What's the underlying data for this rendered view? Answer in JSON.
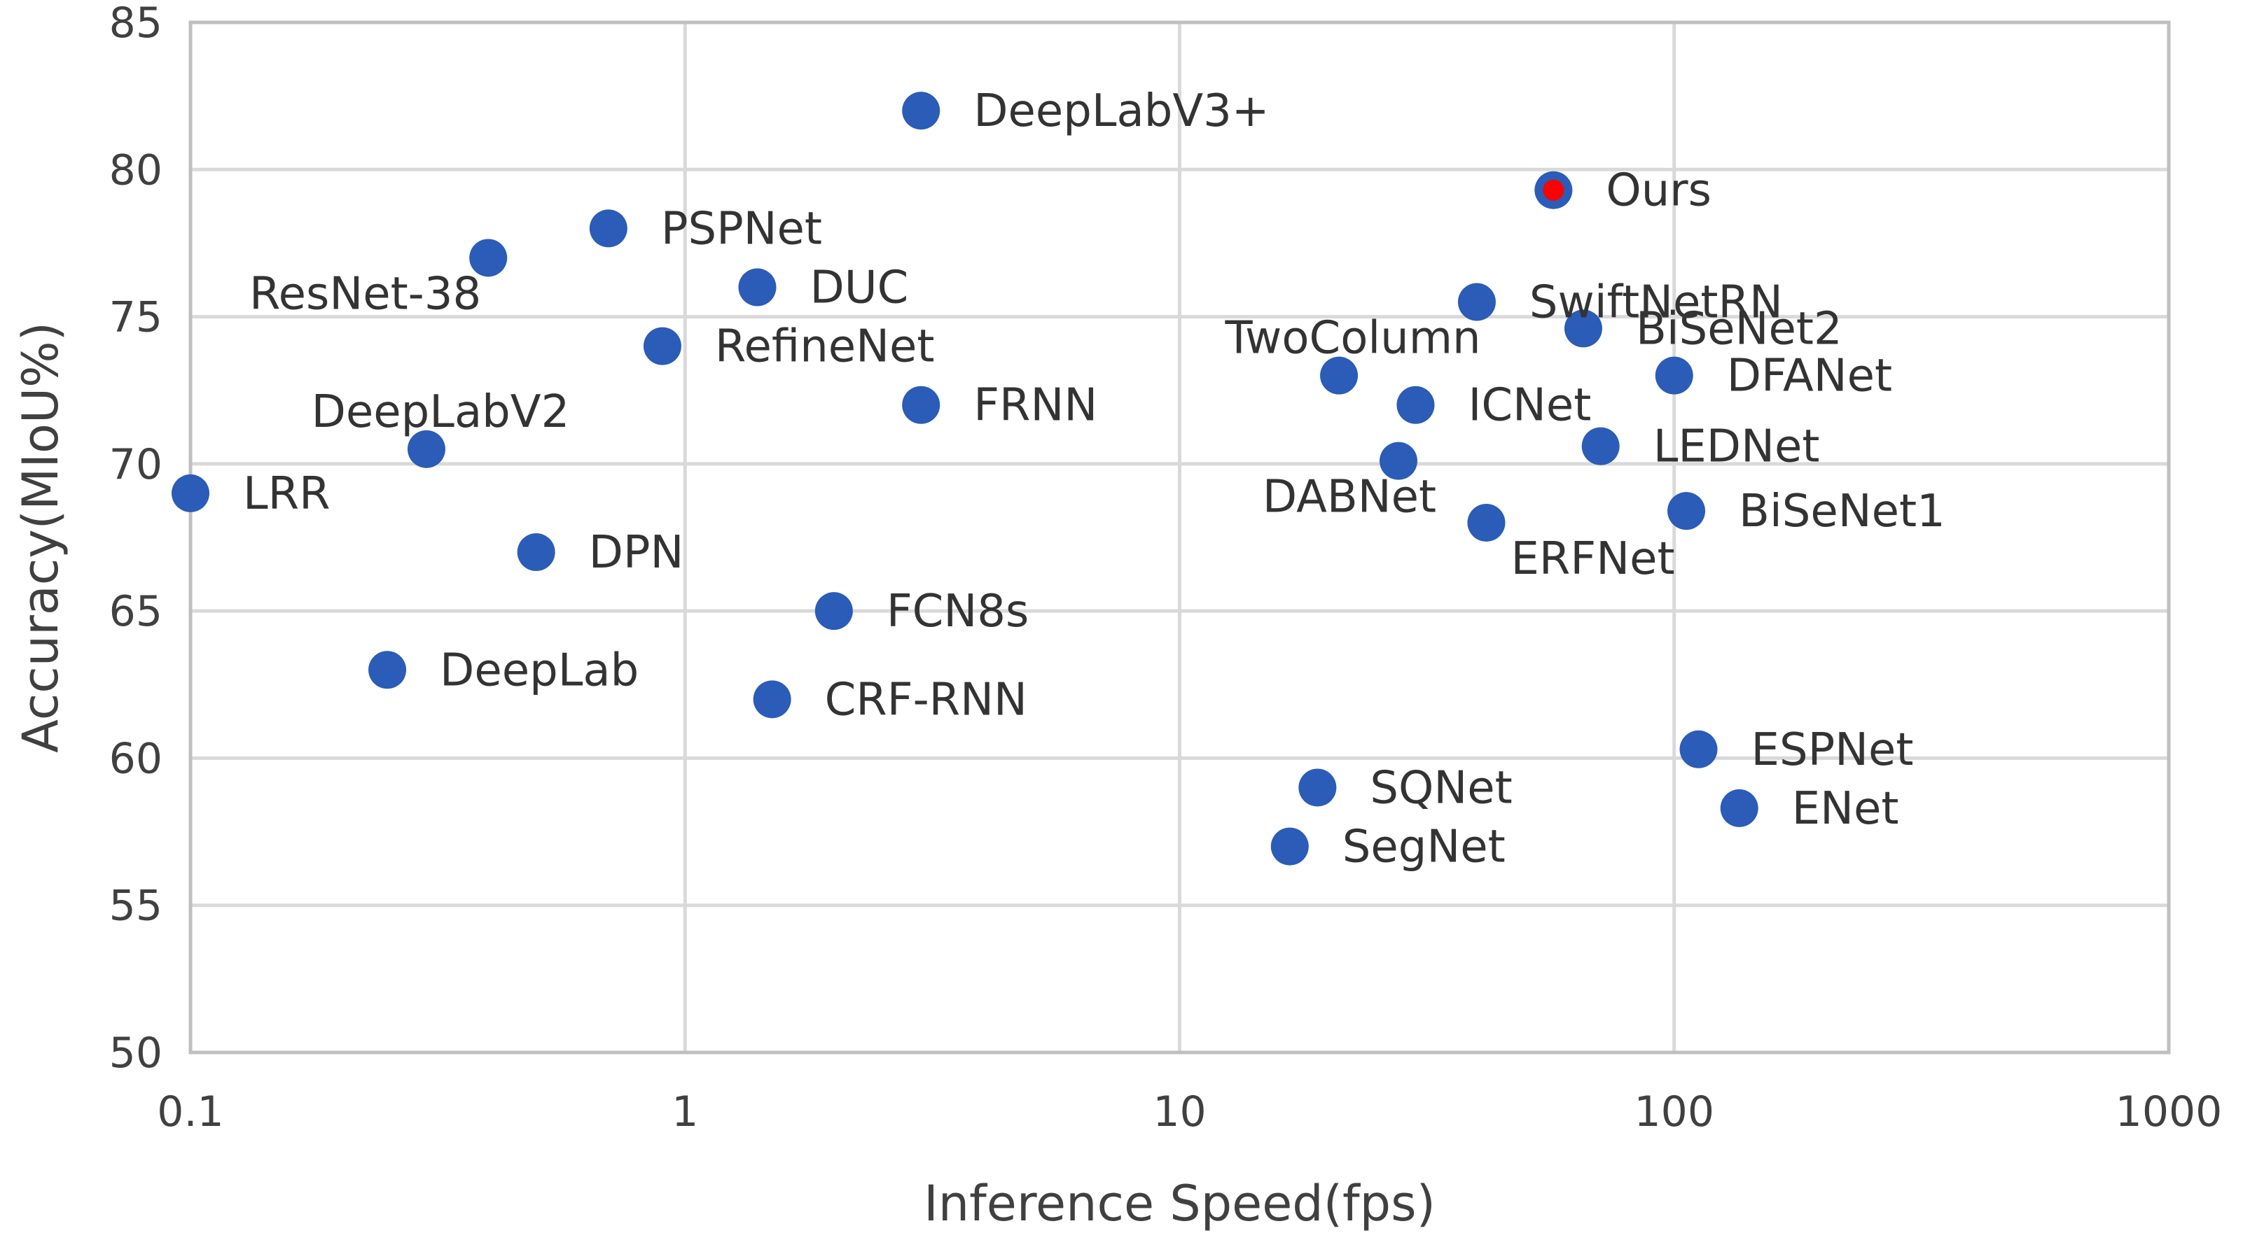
{
  "chart_data": {
    "type": "scatter",
    "title": "",
    "xlabel": "Inference Speed(fps)",
    "ylabel": "Accuracy(MIoU%)",
    "xscale": "log",
    "xlim": [
      0.1,
      1000
    ],
    "ylim": [
      50,
      85
    ],
    "grid": true,
    "legend": "none",
    "x_ticks": [
      "0.1",
      "1",
      "10",
      "100",
      "1000"
    ],
    "y_ticks": [
      "50",
      "55",
      "60",
      "65",
      "70",
      "75",
      "80",
      "85"
    ],
    "colors": {
      "default": "#2a5cb8",
      "highlight": "#ff0000"
    },
    "points": [
      {
        "name": "LRR",
        "x": 0.1,
        "y": 69,
        "label_side": "right"
      },
      {
        "name": "DeepLab",
        "x": 0.25,
        "y": 63,
        "label_side": "right"
      },
      {
        "name": "DeepLabV2",
        "x": 0.3,
        "y": 70.5,
        "label_side": "above"
      },
      {
        "name": "ResNet-38",
        "x": 0.4,
        "y": 77,
        "label_side": "below-left"
      },
      {
        "name": "DPN",
        "x": 0.5,
        "y": 67,
        "label_side": "right"
      },
      {
        "name": "PSPNet",
        "x": 0.7,
        "y": 78,
        "label_side": "right"
      },
      {
        "name": "RefineNet",
        "x": 0.9,
        "y": 74,
        "label_side": "right"
      },
      {
        "name": "DUC",
        "x": 1.4,
        "y": 76,
        "label_side": "right"
      },
      {
        "name": "CRF-RNN",
        "x": 1.5,
        "y": 62,
        "label_side": "right"
      },
      {
        "name": "FCN8s",
        "x": 2,
        "y": 65,
        "label_side": "right"
      },
      {
        "name": "DeepLabV3+",
        "x": 3,
        "y": 82,
        "label_side": "right"
      },
      {
        "name": "FRNN",
        "x": 3,
        "y": 72,
        "label_side": "right"
      },
      {
        "name": "SegNet",
        "x": 16.7,
        "y": 57,
        "label_side": "right"
      },
      {
        "name": "SQNet",
        "x": 19,
        "y": 59,
        "label_side": "right"
      },
      {
        "name": "TwoColumn",
        "x": 21,
        "y": 73,
        "label_side": "above"
      },
      {
        "name": "DABNet",
        "x": 27.7,
        "y": 70.1,
        "label_side": "below"
      },
      {
        "name": "ICNet",
        "x": 30,
        "y": 72,
        "label_side": "right"
      },
      {
        "name": "SwiftNetRN",
        "x": 39.9,
        "y": 75.5,
        "label_side": "right"
      },
      {
        "name": "ERFNet",
        "x": 41.7,
        "y": 68,
        "label_side": "below-right"
      },
      {
        "name": "Ours",
        "x": 57,
        "y": 79.3,
        "label_side": "right",
        "highlight": true
      },
      {
        "name": "BiSeNet2",
        "x": 65.5,
        "y": 74.6,
        "label_side": "right"
      },
      {
        "name": "LEDNet",
        "x": 71,
        "y": 70.6,
        "label_side": "right"
      },
      {
        "name": "DFANet",
        "x": 100,
        "y": 73,
        "label_side": "right"
      },
      {
        "name": "BiSeNet1",
        "x": 105.8,
        "y": 68.4,
        "label_side": "right"
      },
      {
        "name": "ESPNet",
        "x": 112,
        "y": 60.3,
        "label_side": "right"
      },
      {
        "name": "ENet",
        "x": 135.4,
        "y": 58.3,
        "label_side": "right"
      }
    ]
  }
}
